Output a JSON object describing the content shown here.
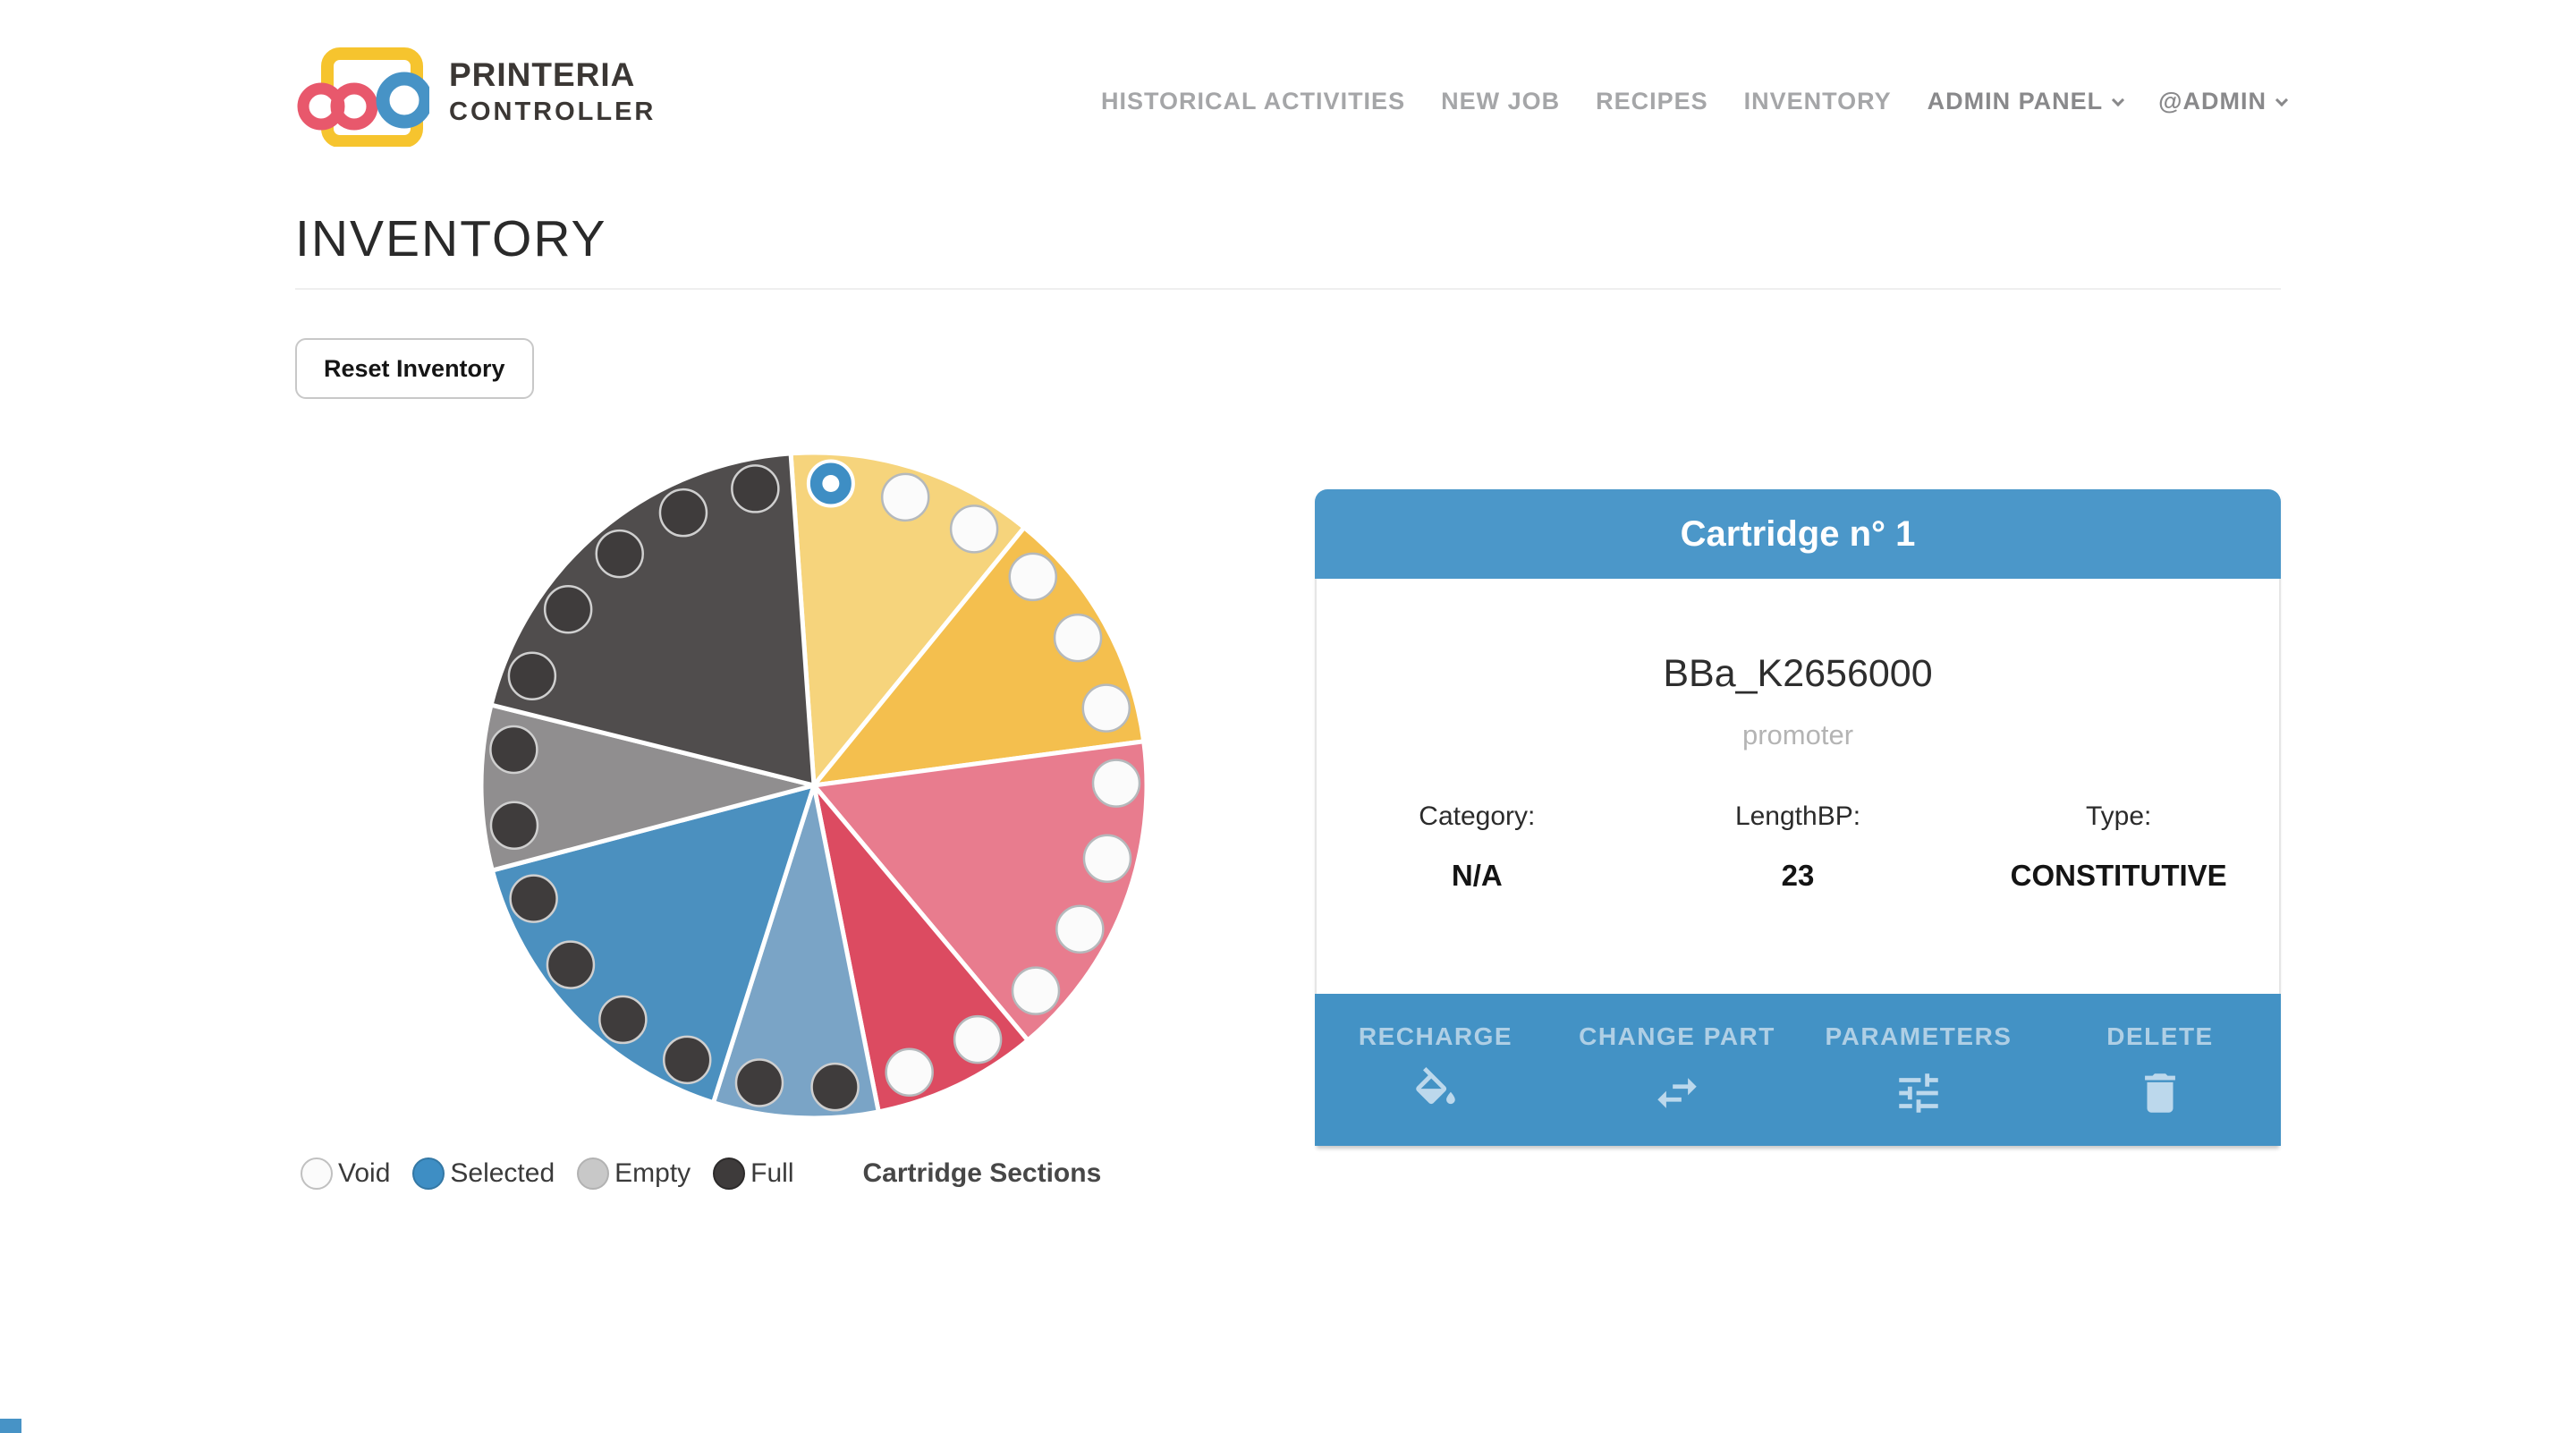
{
  "brand": {
    "name_line1": "PRINTERIA",
    "name_line2": "CONTROLLER"
  },
  "nav": {
    "items": [
      {
        "label": "HISTORICAL ACTIVITIES",
        "emphasized": false,
        "has_dropdown": false
      },
      {
        "label": "NEW JOB",
        "emphasized": false,
        "has_dropdown": false
      },
      {
        "label": "RECIPES",
        "emphasized": false,
        "has_dropdown": false
      },
      {
        "label": "INVENTORY",
        "emphasized": false,
        "has_dropdown": false
      },
      {
        "label": "ADMIN PANEL",
        "emphasized": true,
        "has_dropdown": true
      },
      {
        "label": "@ADMIN",
        "emphasized": true,
        "has_dropdown": true
      }
    ]
  },
  "page": {
    "title": "INVENTORY",
    "reset_button": "Reset Inventory"
  },
  "legend": {
    "items": [
      {
        "label": "Void",
        "color": "#FBFBFB",
        "border": "#C0C0C0"
      },
      {
        "label": "Selected",
        "color": "#3E8EC4",
        "border": "#3478A5"
      },
      {
        "label": "Empty",
        "color": "#C8C8C8",
        "border": "#B2B2B2"
      },
      {
        "label": "Full",
        "color": "#3E3B3B",
        "border": "#2C2A2A"
      }
    ],
    "title": "Cartridge Sections"
  },
  "chart_data": {
    "type": "pie",
    "title": "Cartridge Sections",
    "description": "Inventory wheel: 8 cartridge segments, 25 slots total; each dot is a cartridge section whose state is void, selected, empty or full.",
    "total_slots": 25,
    "slot_angle_deg": 14.4,
    "rotation_deg": -4,
    "segments": [
      {
        "cartridge": 1,
        "color": "#F6D47C",
        "slots": [
          "selected",
          "void",
          "void"
        ]
      },
      {
        "cartridge": 2,
        "color": "#F4BF4E",
        "slots": [
          "void",
          "void",
          "void"
        ]
      },
      {
        "cartridge": 3,
        "color": "#E87C8E",
        "slots": [
          "void",
          "void",
          "void",
          "void"
        ]
      },
      {
        "cartridge": 4,
        "color": "#DC4B61",
        "slots": [
          "void",
          "void"
        ]
      },
      {
        "cartridge": 5,
        "color": "#7AA4C6",
        "slots": [
          "full",
          "full"
        ]
      },
      {
        "cartridge": 6,
        "color": "#4B90BF",
        "slots": [
          "full",
          "full",
          "full",
          "full"
        ]
      },
      {
        "cartridge": 7,
        "color": "#908E8F",
        "slots": [
          "full",
          "full"
        ]
      },
      {
        "cartridge": 8,
        "color": "#504D4D",
        "slots": [
          "full",
          "full",
          "full",
          "full",
          "full"
        ]
      }
    ],
    "slot_styles": {
      "void": {
        "fill": "#FBFBFB",
        "stroke": "#B5B9BC"
      },
      "empty": {
        "fill": "#C8C8C8",
        "stroke": "#ADADAD"
      },
      "full": {
        "fill": "#3F3C3C",
        "stroke": "#CFCFCF"
      },
      "selected": {
        "fill": "#3E8EC4",
        "stroke": "#FFFFFF"
      }
    }
  },
  "card": {
    "title": "Cartridge n° 1",
    "part_name": "BBa_K2656000",
    "part_role": "promoter",
    "fields": [
      {
        "label": "Category:",
        "value": "N/A"
      },
      {
        "label": "LengthBP:",
        "value": "23"
      },
      {
        "label": "Type:",
        "value": "CONSTITUTIVE"
      }
    ],
    "actions": [
      {
        "label": "RECHARGE",
        "icon": "paint-fill-icon"
      },
      {
        "label": "CHANGE PART",
        "icon": "swap-arrows-icon"
      },
      {
        "label": "PARAMETERS",
        "icon": "sliders-icon"
      },
      {
        "label": "DELETE",
        "icon": "trash-icon"
      }
    ]
  }
}
